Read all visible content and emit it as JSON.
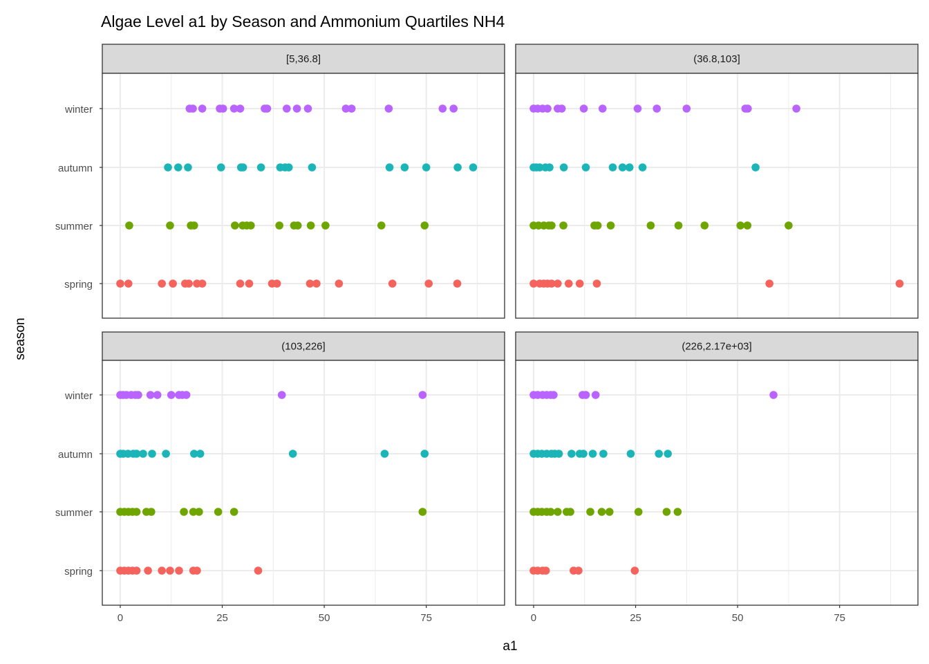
{
  "chart_data": {
    "type": "scatter",
    "title": "Algae Level a1 by Season and Ammonium Quartiles NH4",
    "xlabel": "a1",
    "ylabel": "season",
    "xlim": [
      -4.4,
      94.2
    ],
    "x_ticks": [
      0,
      25,
      50,
      75
    ],
    "x_tick_labels": [
      "0",
      "25",
      "50",
      "75"
    ],
    "categories": [
      "winter",
      "autumn",
      "summer",
      "spring"
    ],
    "grid": true,
    "legend": "none",
    "colors": {
      "spring": "#F5635D",
      "summer": "#6EA500",
      "autumn": "#1BB5B7",
      "winter": "#B964FE"
    },
    "panels": [
      {
        "label": "[5,36.8]",
        "series": {
          "winter": [
            17,
            17.8,
            20.1,
            24.4,
            25.2,
            27.9,
            29.4,
            35.4,
            36,
            40.8,
            43.3,
            46,
            55.3,
            56.7,
            65.8,
            79,
            81.7
          ],
          "autumn": [
            11.7,
            14.2,
            16.6,
            24.7,
            29.6,
            30.1,
            34.5,
            39.2,
            40.4,
            41.3,
            47,
            66,
            69.7,
            75,
            82.7,
            86.5
          ],
          "summer": [
            2.2,
            12.2,
            17.3,
            18.1,
            28.1,
            30,
            31,
            32,
            39,
            42.6,
            43.5,
            46.7,
            50.3,
            64,
            74.6
          ],
          "spring": [
            0,
            2,
            10.2,
            12.9,
            15.9,
            16.8,
            18.8,
            20.1,
            29.4,
            31.6,
            37.2,
            38.4,
            46.5,
            48.1,
            53.6,
            66.7,
            75.6,
            82.6
          ]
        }
      },
      {
        "label": "(36.8,103]",
        "series": {
          "winter": [
            0,
            1,
            2.2,
            3.4,
            5.9,
            6.9,
            12.3,
            16.9,
            25.5,
            30.2,
            37.5,
            51.9,
            52.5,
            64.4
          ],
          "autumn": [
            0,
            0.7,
            1.5,
            2.9,
            3.9,
            7.4,
            12.8,
            19.4,
            21.8,
            23.5,
            26.7,
            54.4
          ],
          "summer": [
            0,
            1.2,
            2.5,
            3.7,
            4.4,
            7.3,
            14.9,
            15.7,
            18.9,
            28.7,
            35.5,
            41.9,
            50.7,
            52.4,
            62.5
          ],
          "spring": [
            0,
            1.5,
            2.5,
            3.4,
            4.4,
            5.9,
            8.6,
            11.3,
            15.5,
            57.8,
            89.7
          ]
        }
      },
      {
        "label": "(103,226]",
        "series": {
          "winter": [
            0,
            0.7,
            1.5,
            2.7,
            3.7,
            4.4,
            7.4,
            9.1,
            12.5,
            14.4,
            15.2,
            16.2,
            39.6,
            74.1
          ],
          "autumn": [
            0,
            0.7,
            1.9,
            3.2,
            4,
            5.6,
            7.8,
            11.2,
            18.1,
            19.6,
            42.3,
            64.8,
            74.6
          ],
          "summer": [
            0,
            1,
            2,
            3,
            4,
            6.4,
            7.6,
            15.6,
            17.9,
            19.3,
            24,
            27.9,
            74.1
          ],
          "spring": [
            0,
            1,
            2,
            3,
            4,
            6.8,
            10.2,
            12.2,
            14.4,
            17.9,
            18.8,
            33.8
          ]
        }
      },
      {
        "label": "(226,2.17e+03]",
        "series": {
          "winter": [
            0,
            1,
            2.2,
            3.2,
            4.2,
            4.9,
            12,
            12.8,
            15.2,
            58.8
          ],
          "autumn": [
            0,
            1,
            2,
            3.2,
            4.4,
            5.2,
            6.2,
            9.3,
            11.3,
            12.2,
            14.5,
            17.1,
            23.8,
            30.7,
            32.9
          ],
          "summer": [
            0,
            1,
            2,
            3.2,
            4.2,
            5.9,
            8.1,
            9,
            13.9,
            16.7,
            18.6,
            25.7,
            32.6,
            35.3
          ],
          "spring": [
            0,
            1,
            2.2,
            3,
            9.8,
            11,
            24.8
          ]
        }
      }
    ]
  }
}
